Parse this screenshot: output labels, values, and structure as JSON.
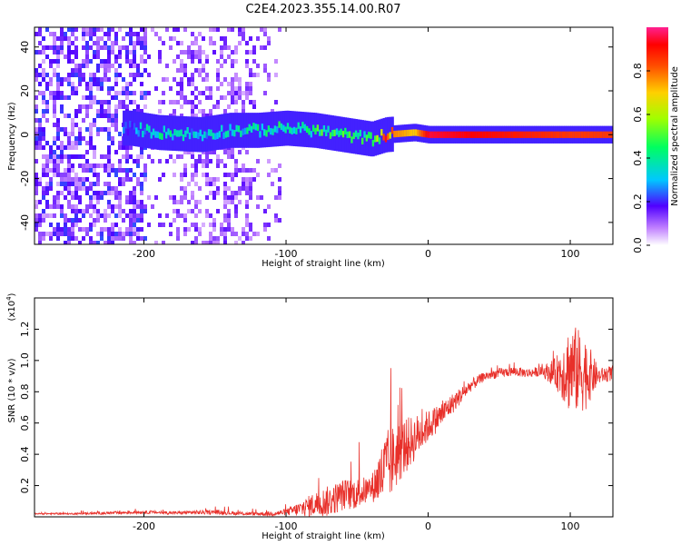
{
  "title": "C2E4.2023.355.14.00.R07",
  "chart_data": [
    {
      "type": "heatmap",
      "xlabel": "Height of straight line (km)",
      "ylabel": "Frequency (Hz)",
      "xlim": [
        -277,
        130
      ],
      "ylim": [
        -50,
        49
      ],
      "xticks": [
        -200,
        -100,
        0,
        100
      ],
      "yticks": [
        -40,
        -20,
        0,
        20,
        40
      ],
      "colorbar": {
        "label": "Normalized spectral amplitude",
        "range": [
          0,
          1
        ],
        "ticks": [
          "0.0",
          "0.2",
          "0.4",
          "0.6",
          "0.8"
        ]
      },
      "ridge": [
        {
          "x": -210,
          "f": 3,
          "amp": 0.25
        },
        {
          "x": -190,
          "f": 1,
          "amp": 0.4
        },
        {
          "x": -160,
          "f": 0,
          "amp": 0.3
        },
        {
          "x": -140,
          "f": 2,
          "amp": 0.35
        },
        {
          "x": -120,
          "f": 2,
          "amp": 0.38
        },
        {
          "x": -100,
          "f": 3,
          "amp": 0.42
        },
        {
          "x": -80,
          "f": 2,
          "amp": 0.45
        },
        {
          "x": -60,
          "f": 0,
          "amp": 0.45
        },
        {
          "x": -40,
          "f": -2,
          "amp": 0.42
        },
        {
          "x": -30,
          "f": 0,
          "amp": 0.8
        },
        {
          "x": -10,
          "f": 1,
          "amp": 0.7
        },
        {
          "x": 0,
          "f": 0,
          "amp": 0.95
        },
        {
          "x": 50,
          "f": 0,
          "amp": 0.9
        },
        {
          "x": 100,
          "f": 0,
          "amp": 0.85
        },
        {
          "x": 130,
          "f": 0,
          "amp": 0.85
        }
      ]
    },
    {
      "type": "line",
      "xlabel": "Height of straight line (km)",
      "ylabel": "SNR (10 * v/v)",
      "yscale_label": "(x10",
      "yscale_exp": "4",
      "yscale_close": ")",
      "xlim": [
        -277,
        130
      ],
      "ylim": [
        0,
        1.4
      ],
      "xticks": [
        -200,
        -100,
        0,
        100
      ],
      "yticks": [
        "0.2",
        "0.4",
        "0.6",
        "0.8",
        "1.0",
        "1.2"
      ],
      "color": "#e8302a",
      "series": [
        {
          "x": [
            -277,
            -250,
            -220,
            -200,
            -180,
            -150,
            -130,
            -110,
            -100,
            -90,
            -80,
            -70,
            -60,
            -50,
            -40,
            -30,
            -20,
            -10,
            0,
            10,
            20,
            30,
            40,
            50,
            60,
            70,
            80,
            90,
            100,
            110,
            120,
            130
          ],
          "y": [
            0.02,
            0.02,
            0.025,
            0.03,
            0.025,
            0.03,
            0.02,
            0.02,
            0.03,
            0.05,
            0.08,
            0.1,
            0.14,
            0.15,
            0.18,
            0.3,
            0.42,
            0.5,
            0.58,
            0.66,
            0.75,
            0.84,
            0.9,
            0.92,
            0.93,
            0.92,
            0.93,
            0.92,
            0.95,
            0.92,
            0.9,
            0.92
          ],
          "noise": [
            0.005,
            0.005,
            0.01,
            0.01,
            0.01,
            0.015,
            0.01,
            0.015,
            0.02,
            0.05,
            0.08,
            0.1,
            0.1,
            0.1,
            0.08,
            0.25,
            0.2,
            0.15,
            0.1,
            0.08,
            0.06,
            0.04,
            0.03,
            0.03,
            0.03,
            0.03,
            0.03,
            0.1,
            0.3,
            0.25,
            0.05,
            0.05
          ]
        }
      ]
    }
  ]
}
